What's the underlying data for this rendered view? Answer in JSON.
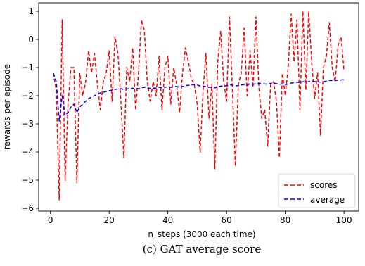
{
  "chart_data": {
    "type": "line",
    "xlabel": "n_steps (3000 each time)",
    "ylabel": "rewards per episode",
    "xlim": [
      -4,
      105
    ],
    "ylim": [
      -6.1,
      1.3
    ],
    "xticks": [
      0,
      20,
      40,
      60,
      80,
      100
    ],
    "yticks": [
      1,
      0,
      -1,
      -2,
      -3,
      -4,
      -5,
      -6
    ],
    "grid": false,
    "legend_position": "bottom-right",
    "series": [
      {
        "name": "scores",
        "color": "#ff0000",
        "style": "dashed",
        "x": [
          1,
          2,
          3,
          4,
          5,
          6,
          7,
          8,
          9,
          10,
          11,
          12,
          13,
          14,
          15,
          16,
          17,
          18,
          19,
          20,
          21,
          22,
          23,
          24,
          25,
          26,
          27,
          28,
          29,
          30,
          31,
          32,
          33,
          34,
          35,
          36,
          37,
          38,
          39,
          40,
          41,
          42,
          43,
          44,
          45,
          46,
          47,
          48,
          49,
          50,
          51,
          52,
          53,
          54,
          55,
          56,
          57,
          58,
          59,
          60,
          61,
          62,
          63,
          64,
          65,
          66,
          67,
          68,
          69,
          70,
          71,
          72,
          73,
          74,
          75,
          76,
          77,
          78,
          79,
          80,
          81,
          82,
          83,
          84,
          85,
          86,
          87,
          88,
          89,
          90,
          91,
          92,
          93,
          94,
          95,
          96,
          97,
          98,
          99,
          100
        ],
        "values": [
          -1.2,
          -1.8,
          -5.7,
          0.7,
          -5.0,
          -2.3,
          -1.0,
          -1.0,
          -5.1,
          -1.2,
          -2.0,
          -1.5,
          -0.4,
          -1.2,
          -0.5,
          -1.6,
          -2.5,
          -1.5,
          -1.2,
          -0.4,
          -2.2,
          0.1,
          -0.5,
          -2.2,
          -4.2,
          -1.0,
          -1.5,
          -0.3,
          -2.5,
          -1.2,
          0.7,
          0.3,
          -1.5,
          -2.2,
          -1.5,
          -2.0,
          -0.6,
          -2.5,
          -1.0,
          -0.6,
          -2.3,
          -1.0,
          -1.6,
          -2.6,
          -1.2,
          -0.3,
          -0.8,
          -1.4,
          -1.6,
          -2.3,
          -4.0,
          -1.8,
          -0.5,
          -2.8,
          -1.6,
          -4.6,
          -0.8,
          0.3,
          -1.5,
          -2.2,
          0.8,
          -1.8,
          -4.5,
          -1.6,
          -1.2,
          0.4,
          -2.0,
          -0.4,
          -1.7,
          0.8,
          -1.7,
          -2.8,
          -2.5,
          -3.8,
          -1.6,
          -1.5,
          -2.2,
          -4.2,
          -1.2,
          -2.0,
          -1.0,
          0.9,
          -0.8,
          0.7,
          -2.5,
          1.0,
          -1.8,
          1.0,
          -0.8,
          -2.1,
          -1.2,
          -3.4,
          -1.0,
          -0.6,
          0.6,
          -1.0,
          -1.5,
          -0.2,
          0.1,
          -1.1
        ]
      },
      {
        "name": "average",
        "color": "#0000ff",
        "style": "dashed",
        "x": [
          1,
          2,
          3,
          4,
          5,
          6,
          7,
          8,
          9,
          10,
          11,
          12,
          13,
          14,
          15,
          16,
          17,
          18,
          19,
          20,
          21,
          22,
          23,
          24,
          25,
          26,
          27,
          28,
          29,
          30,
          31,
          32,
          33,
          34,
          35,
          36,
          37,
          38,
          39,
          40,
          41,
          42,
          43,
          44,
          45,
          46,
          47,
          48,
          49,
          50,
          51,
          52,
          53,
          54,
          55,
          56,
          57,
          58,
          59,
          60,
          61,
          62,
          63,
          64,
          65,
          66,
          67,
          68,
          69,
          70,
          71,
          72,
          73,
          74,
          75,
          76,
          77,
          78,
          79,
          80,
          81,
          82,
          83,
          84,
          85,
          86,
          87,
          88,
          89,
          90,
          91,
          92,
          93,
          94,
          95,
          96,
          97,
          98,
          99,
          100
        ],
        "values": [
          -1.2,
          -1.5,
          -2.9,
          -2.0,
          -2.7,
          -2.6,
          -2.4,
          -2.3,
          -2.6,
          -2.4,
          -2.3,
          -2.2,
          -2.1,
          -2.05,
          -2.0,
          -1.95,
          -1.9,
          -1.88,
          -1.85,
          -1.82,
          -1.8,
          -1.78,
          -1.76,
          -1.75,
          -1.78,
          -1.76,
          -1.75,
          -1.73,
          -1.76,
          -1.75,
          -1.72,
          -1.7,
          -1.72,
          -1.74,
          -1.73,
          -1.73,
          -1.7,
          -1.72,
          -1.7,
          -1.68,
          -1.7,
          -1.68,
          -1.67,
          -1.7,
          -1.68,
          -1.64,
          -1.63,
          -1.62,
          -1.6,
          -1.62,
          -1.65,
          -1.66,
          -1.68,
          -1.7,
          -1.7,
          -1.72,
          -1.69,
          -1.66,
          -1.65,
          -1.65,
          -1.62,
          -1.62,
          -1.65,
          -1.64,
          -1.62,
          -1.6,
          -1.62,
          -1.58,
          -1.6,
          -1.57,
          -1.56,
          -1.58,
          -1.58,
          -1.6,
          -1.56,
          -1.55,
          -1.57,
          -1.6,
          -1.58,
          -1.62,
          -1.58,
          -1.55,
          -1.54,
          -1.52,
          -1.54,
          -1.5,
          -1.52,
          -1.5,
          -1.48,
          -1.5,
          -1.5,
          -1.52,
          -1.5,
          -1.48,
          -1.46,
          -1.46,
          -1.46,
          -1.45,
          -1.44,
          -1.43
        ]
      }
    ]
  },
  "caption": "(c)    GAT average score"
}
